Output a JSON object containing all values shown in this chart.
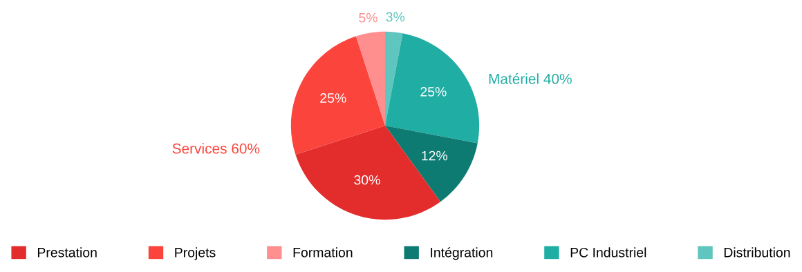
{
  "chart_data": {
    "type": "pie",
    "categories": [
      "Prestation",
      "Projets",
      "Formation",
      "Intégration",
      "PC Industriel",
      "Distribution"
    ],
    "values": [
      30,
      25,
      5,
      12,
      25,
      3
    ],
    "value_labels": [
      "30%",
      "25%",
      "5%",
      "12%",
      "25%",
      "3%"
    ],
    "colors": [
      "#e32c2c",
      "#fb443c",
      "#ff8f8f",
      "#0e7b73",
      "#20ada3",
      "#5fc6bf"
    ],
    "annotations": [
      "Services 60%",
      "Matériel 40%"
    ],
    "legend": "bottom"
  }
}
